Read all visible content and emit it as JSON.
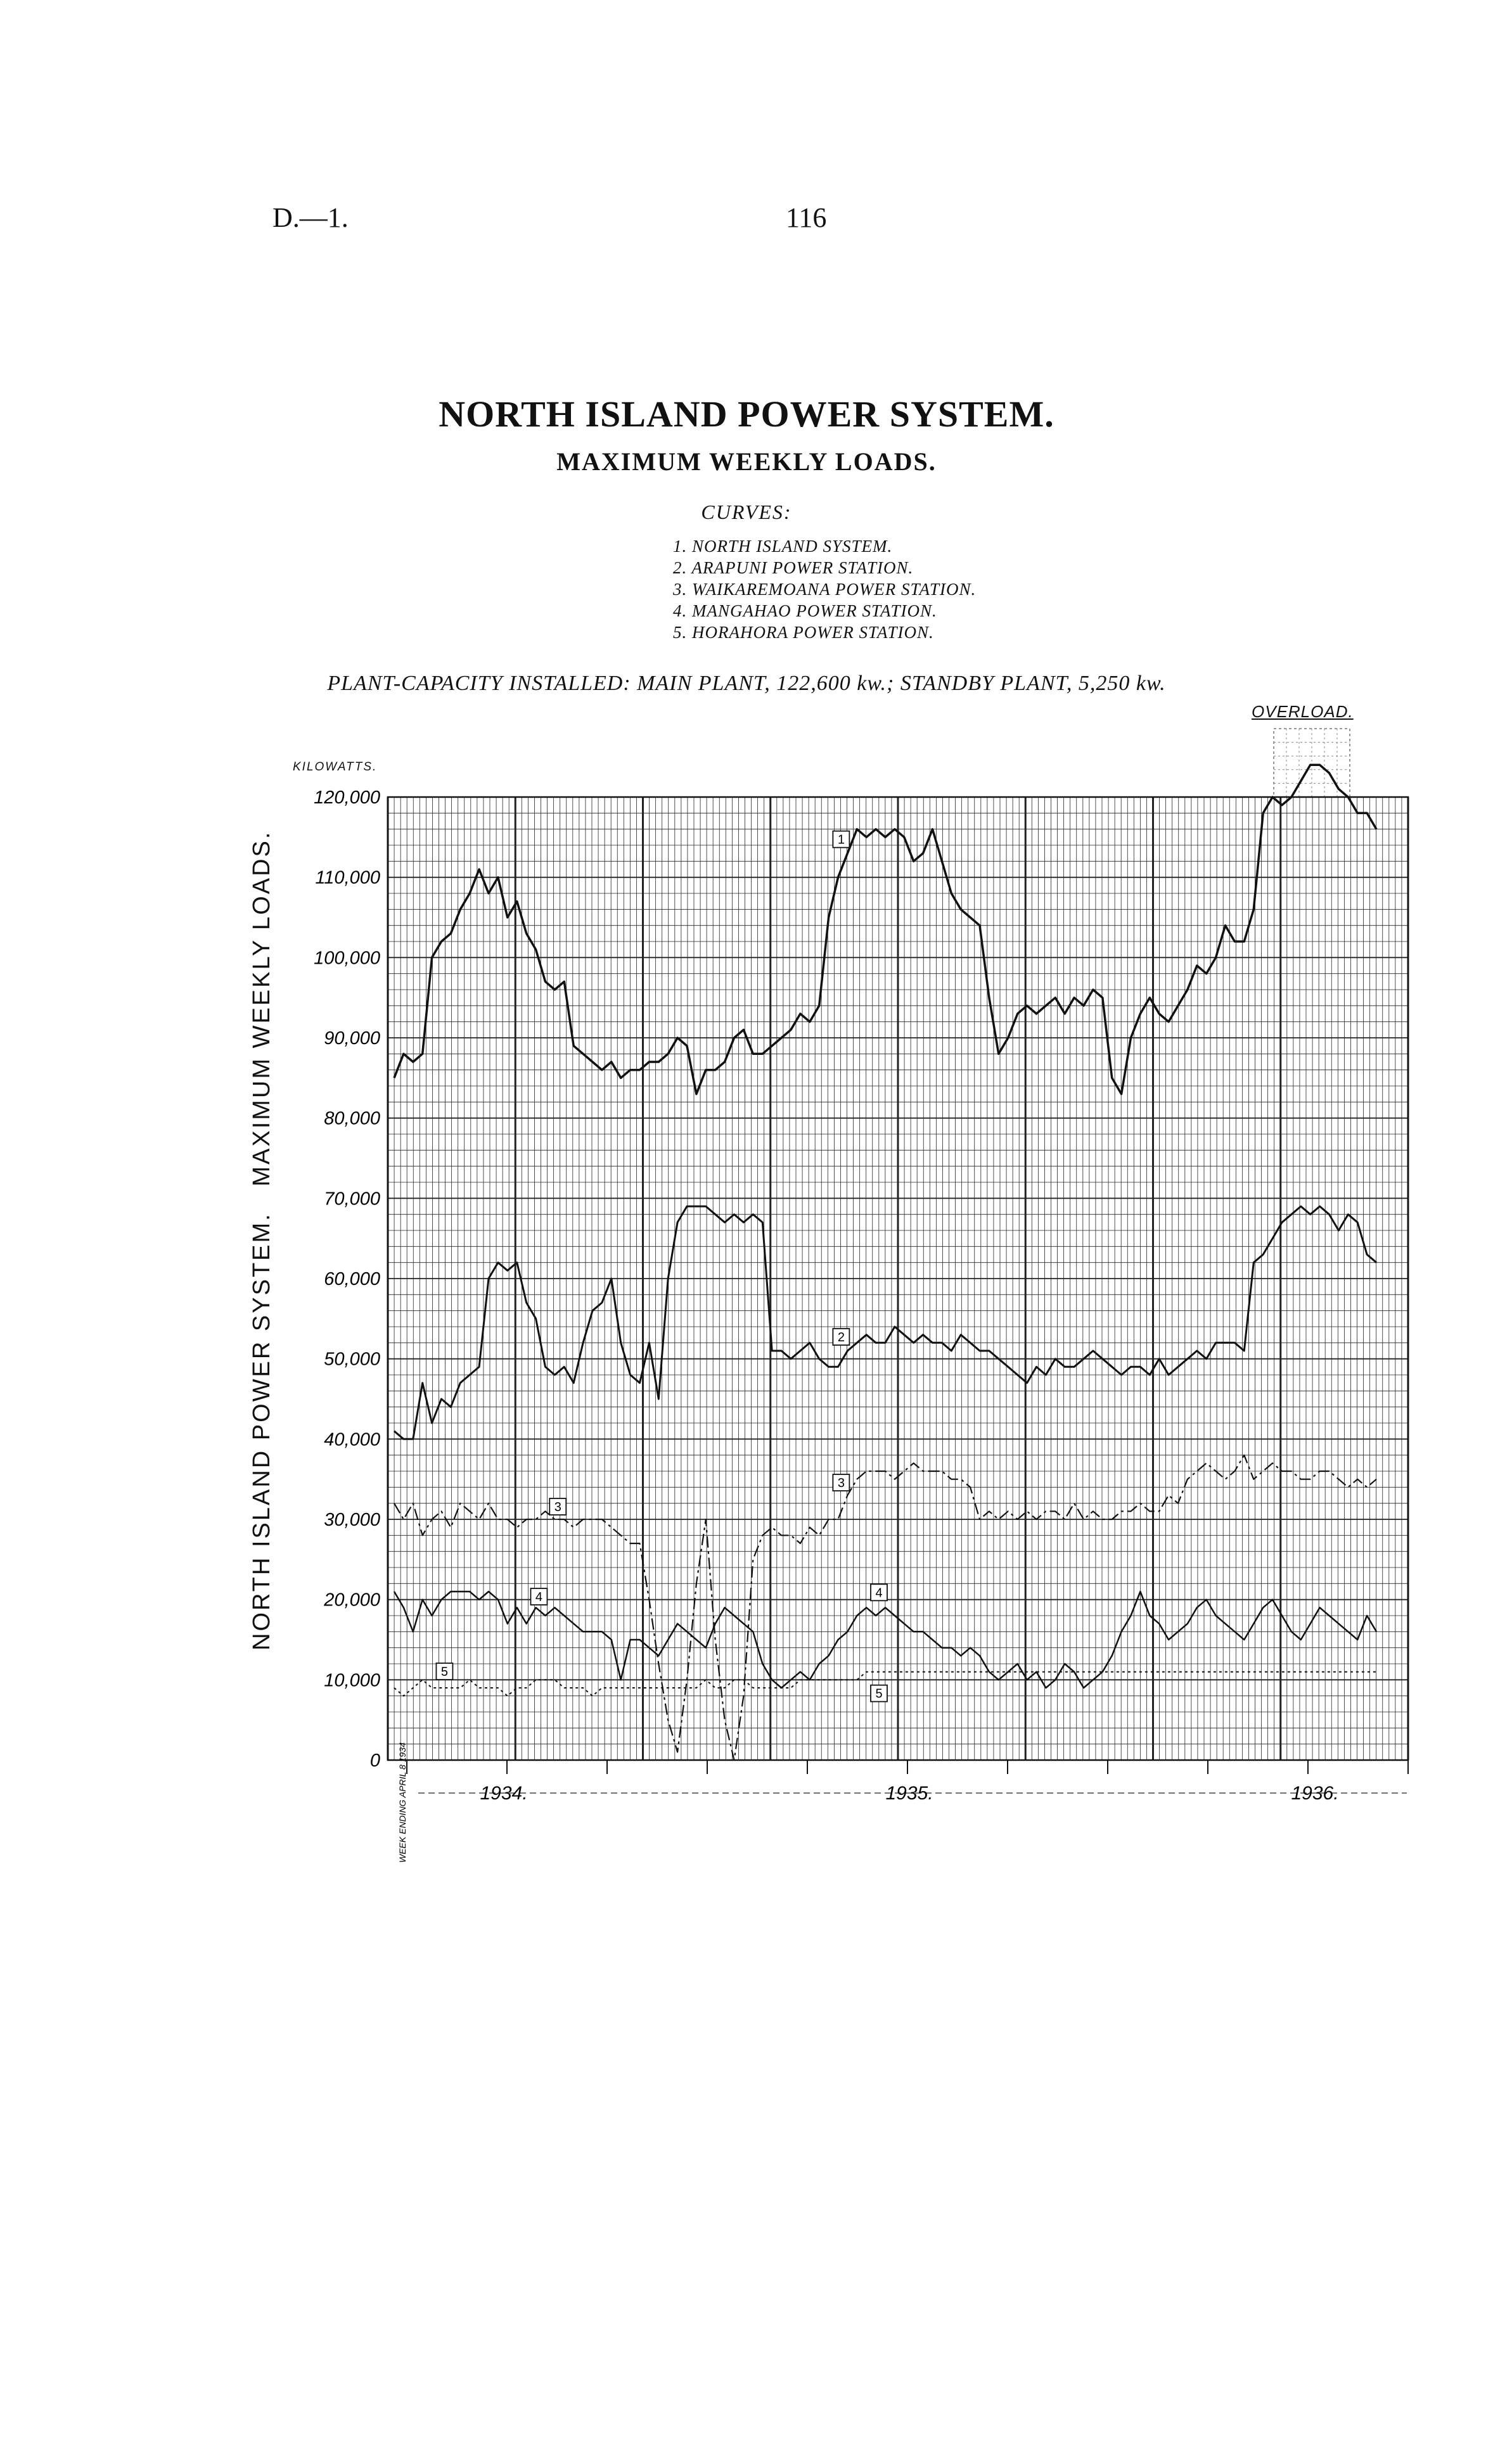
{
  "header": {
    "left": "D.—1.",
    "page": "116"
  },
  "title": "NORTH ISLAND POWER SYSTEM.",
  "subtitle": "MAXIMUM WEEKLY LOADS.",
  "curves_heading": "CURVES:",
  "curves": [
    "1. NORTH ISLAND SYSTEM.",
    "2. ARAPUNI POWER STATION.",
    "3. WAIKAREMOANA POWER STATION.",
    "4. MANGAHAO POWER STATION.",
    "5. HORAHORA POWER STATION."
  ],
  "plant_capacity": "PLANT-CAPACITY INSTALLED: MAIN PLANT, 122,600 kw.; STANDBY PLANT, 5,250 kw.",
  "overload_label": "OVERLOAD.",
  "y_unit_label": "KILOWATTS.",
  "side_label": "NORTH ISLAND POWER SYSTEM.   MAXIMUM WEEKLY LOADS.",
  "x_start_label": "WEEK ENDING APRIL 8 1934",
  "chart_data": {
    "type": "line",
    "ylabel": "NORTH ISLAND POWER SYSTEM.   MAXIMUM WEEKLY LOADS.",
    "ylim": [
      0,
      120000
    ],
    "yticks": [
      "0",
      "10,000",
      "20,000",
      "30,000",
      "40,000",
      "50,000",
      "60,000",
      "70,000",
      "80,000",
      "90,000",
      "100,000",
      "110,000",
      "120,000"
    ],
    "x_year_labels": [
      "1934.",
      "1935.",
      "1936."
    ],
    "x_unit": "week from April 1934",
    "grid": true,
    "series": [
      {
        "name": "1. NORTH ISLAND SYSTEM.",
        "label": "1",
        "stroke": 3.5,
        "dash": "",
        "values": [
          85000,
          88000,
          87000,
          88000,
          100000,
          102000,
          103000,
          106000,
          108000,
          111000,
          108000,
          110000,
          105000,
          107000,
          103000,
          101000,
          97000,
          96000,
          97000,
          89000,
          88000,
          87000,
          86000,
          87000,
          85000,
          86000,
          86000,
          87000,
          87000,
          88000,
          90000,
          89000,
          83000,
          86000,
          86000,
          87000,
          90000,
          91000,
          88000,
          88000,
          89000,
          90000,
          91000,
          93000,
          92000,
          94000,
          105000,
          110000,
          113000,
          116000,
          115000,
          116000,
          115000,
          116000,
          115000,
          112000,
          113000,
          116000,
          112000,
          108000,
          106000,
          105000,
          104000,
          95000,
          88000,
          90000,
          93000,
          94000,
          93000,
          94000,
          95000,
          93000,
          95000,
          94000,
          96000,
          95000,
          85000,
          83000,
          90000,
          93000,
          95000,
          93000,
          92000,
          94000,
          96000,
          99000,
          98000,
          100000,
          104000,
          102000,
          102000,
          106000,
          118000,
          120000,
          119000,
          120000,
          122000,
          124000,
          124000,
          123000,
          121000,
          120000,
          118000,
          118000,
          116000
        ]
      },
      {
        "name": "2. ARAPUNI POWER STATION.",
        "label": "2",
        "stroke": 3,
        "dash": "",
        "values": [
          41000,
          40000,
          40000,
          47000,
          42000,
          45000,
          44000,
          47000,
          48000,
          49000,
          60000,
          62000,
          61000,
          62000,
          57000,
          55000,
          49000,
          48000,
          49000,
          47000,
          52000,
          56000,
          57000,
          60000,
          52000,
          48000,
          47000,
          52000,
          45000,
          60000,
          67000,
          69000,
          69000,
          69000,
          68000,
          67000,
          68000,
          67000,
          68000,
          67000,
          51000,
          51000,
          50000,
          51000,
          52000,
          50000,
          49000,
          49000,
          51000,
          52000,
          53000,
          52000,
          52000,
          54000,
          53000,
          52000,
          53000,
          52000,
          52000,
          51000,
          53000,
          52000,
          51000,
          51000,
          50000,
          49000,
          48000,
          47000,
          49000,
          48000,
          50000,
          49000,
          49000,
          50000,
          51000,
          50000,
          49000,
          48000,
          49000,
          49000,
          48000,
          50000,
          48000,
          49000,
          50000,
          51000,
          50000,
          52000,
          52000,
          52000,
          51000,
          62000,
          63000,
          65000,
          67000,
          68000,
          69000,
          68000,
          69000,
          68000,
          66000,
          68000,
          67000,
          63000,
          62000
        ]
      },
      {
        "name": "3. WAIKAREMOANA POWER STATION.",
        "label": "3",
        "stroke": 2.2,
        "dash": "18 6 4 6",
        "values": [
          32000,
          30000,
          32000,
          28000,
          30000,
          31000,
          29000,
          32000,
          31000,
          30000,
          32000,
          30000,
          30000,
          29000,
          30000,
          30000,
          31000,
          30000,
          30000,
          29000,
          30000,
          30000,
          30000,
          29000,
          28000,
          27000,
          27000,
          20000,
          12000,
          5000,
          1000,
          10000,
          22000,
          30000,
          15000,
          5000,
          0,
          8000,
          25000,
          28000,
          29000,
          28000,
          28000,
          27000,
          29000,
          28000,
          30000,
          30000,
          33000,
          35000,
          36000,
          36000,
          36000,
          35000,
          36000,
          37000,
          36000,
          36000,
          36000,
          35000,
          35000,
          34000,
          30000,
          31000,
          30000,
          31000,
          30000,
          31000,
          30000,
          31000,
          31000,
          30000,
          32000,
          30000,
          31000,
          30000,
          30000,
          31000,
          31000,
          32000,
          31000,
          31000,
          33000,
          32000,
          35000,
          36000,
          37000,
          36000,
          35000,
          36000,
          38000,
          35000,
          36000,
          37000,
          36000,
          36000,
          35000,
          35000,
          36000,
          36000,
          35000,
          34000,
          35000,
          34000,
          35000
        ]
      },
      {
        "name": "4. MANGAHAO POWER STATION.",
        "label": "4",
        "stroke": 2.5,
        "dash": "",
        "values": [
          21000,
          19000,
          16000,
          20000,
          18000,
          20000,
          21000,
          21000,
          21000,
          20000,
          21000,
          20000,
          17000,
          19000,
          17000,
          19000,
          18000,
          19000,
          18000,
          17000,
          16000,
          16000,
          16000,
          15000,
          10000,
          15000,
          15000,
          14000,
          13000,
          15000,
          17000,
          16000,
          15000,
          14000,
          17000,
          19000,
          18000,
          17000,
          16000,
          12000,
          10000,
          9000,
          10000,
          11000,
          10000,
          12000,
          13000,
          15000,
          16000,
          18000,
          19000,
          18000,
          19000,
          18000,
          17000,
          16000,
          16000,
          15000,
          14000,
          14000,
          13000,
          14000,
          13000,
          11000,
          10000,
          11000,
          12000,
          10000,
          11000,
          9000,
          10000,
          12000,
          11000,
          9000,
          10000,
          11000,
          13000,
          16000,
          18000,
          21000,
          18000,
          17000,
          15000,
          16000,
          17000,
          19000,
          20000,
          18000,
          17000,
          16000,
          15000,
          17000,
          19000,
          20000,
          18000,
          16000,
          15000,
          17000,
          19000,
          18000,
          17000,
          16000,
          15000,
          18000,
          16000
        ]
      },
      {
        "name": "5. HORAHORA POWER STATION.",
        "label": "5",
        "stroke": 2,
        "dash": "4 5",
        "values": [
          9000,
          8000,
          9000,
          10000,
          9000,
          9000,
          9000,
          9000,
          10000,
          9000,
          9000,
          9000,
          8000,
          9000,
          9000,
          10000,
          10000,
          10000,
          9000,
          9000,
          9000,
          8000,
          9000,
          9000,
          9000,
          9000,
          9000,
          9000,
          9000,
          9000,
          9000,
          9000,
          9000,
          10000,
          9000,
          9000,
          10000,
          10000,
          9000,
          9000,
          9000,
          9000,
          9000,
          10000,
          10000,
          10000,
          10000,
          10000,
          10000,
          10000,
          11000,
          11000,
          11000,
          11000,
          11000,
          11000,
          11000,
          11000,
          11000,
          11000,
          11000,
          11000,
          11000,
          11000,
          11000,
          11000,
          11000,
          11000,
          11000,
          11000,
          11000,
          11000,
          11000,
          11000,
          11000,
          11000,
          11000,
          11000,
          11000,
          11000,
          11000,
          11000,
          11000,
          11000,
          11000,
          11000,
          11000,
          11000,
          11000,
          11000,
          11000,
          11000,
          11000,
          11000,
          11000,
          11000,
          11000,
          11000,
          11000,
          11000,
          11000,
          11000,
          11000,
          11000,
          11000
        ]
      }
    ]
  }
}
